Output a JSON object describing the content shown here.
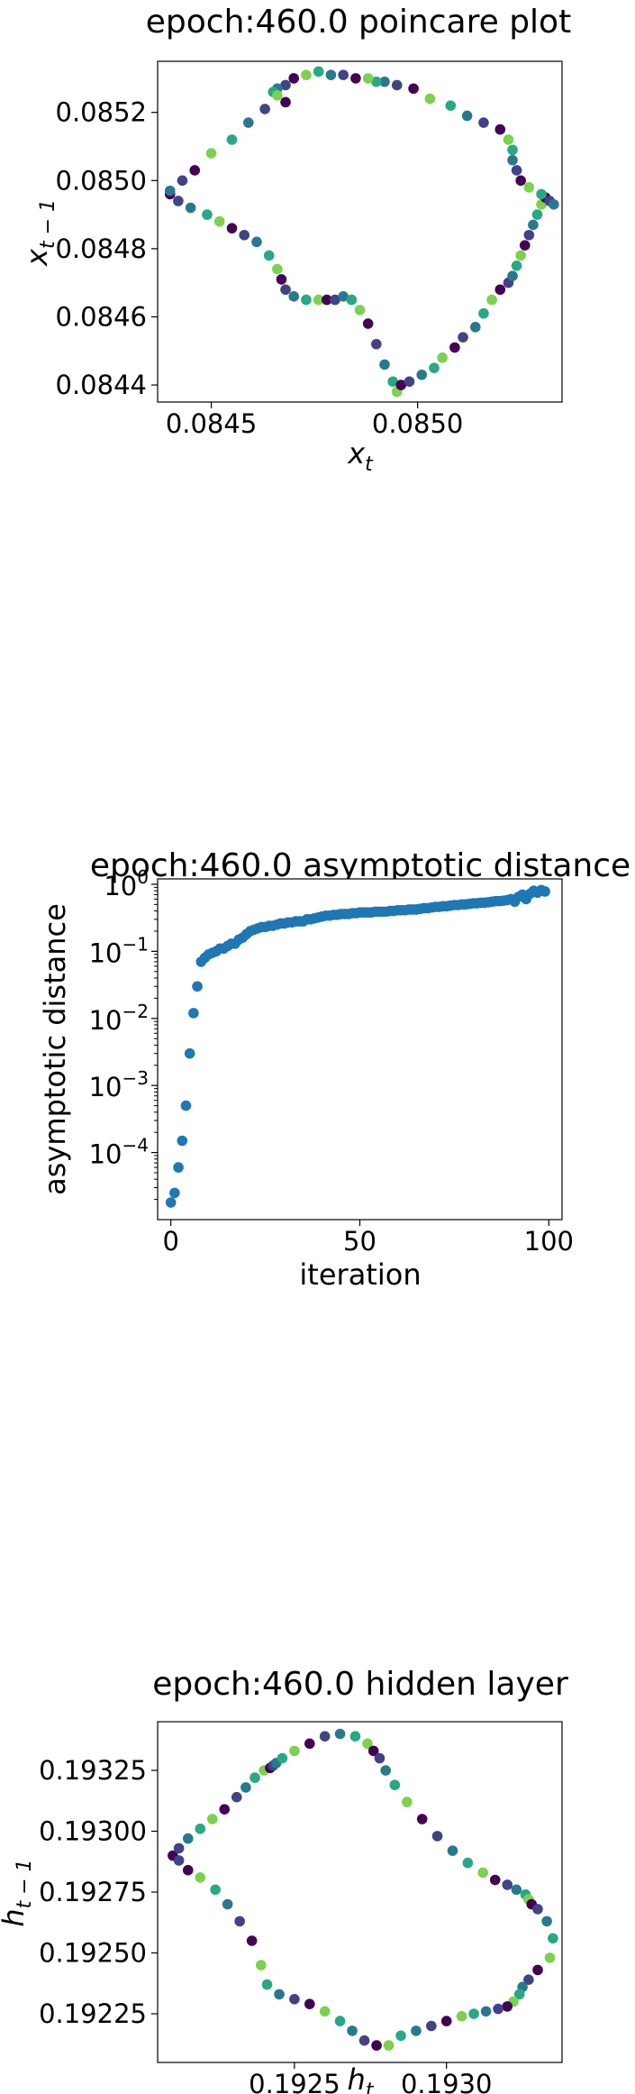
{
  "charts": [
    {
      "type": "scatter",
      "title": "epoch:460.0 poincare plot",
      "xlabel": "x",
      "xlabel_sub": "t",
      "ylabel": "x",
      "ylabel_sub": "t − 1",
      "xlim": [
        0.08437,
        0.08535
      ],
      "ylim": [
        0.08435,
        0.08535
      ],
      "xticks": [
        0.0845,
        0.085
      ],
      "xtick_labels": [
        "0.0845",
        "0.0850"
      ],
      "yticks": [
        0.0844,
        0.0846,
        0.0848,
        0.085,
        0.0852
      ],
      "ytick_labels": [
        "0.0844",
        "0.0846",
        "0.0848",
        "0.0850",
        "0.0852"
      ],
      "colormap": "viridis",
      "x": [
        0.0844,
        0.08442,
        0.08445,
        0.08449,
        0.08452,
        0.08455,
        0.08458,
        0.08461,
        0.08464,
        0.08466,
        0.08467,
        0.08468,
        0.0847,
        0.08473,
        0.08476,
        0.08478,
        0.0848,
        0.08482,
        0.08484,
        0.08486,
        0.08488,
        0.0849,
        0.08492,
        0.08494,
        0.08495,
        0.08496,
        0.08498,
        0.08501,
        0.08504,
        0.08506,
        0.08509,
        0.08511,
        0.08514,
        0.08516,
        0.08518,
        0.0852,
        0.08522,
        0.08523,
        0.08524,
        0.08525,
        0.08526,
        0.08527,
        0.08528,
        0.08529,
        0.0853,
        0.08531,
        0.08532,
        0.08533,
        0.0853,
        0.08527,
        0.08525,
        0.08524,
        0.08523,
        0.08523,
        0.08522,
        0.0852,
        0.08516,
        0.08512,
        0.08508,
        0.08503,
        0.08499,
        0.08495,
        0.08492,
        0.0849,
        0.08488,
        0.08485,
        0.08482,
        0.08479,
        0.08476,
        0.08473,
        0.0847,
        0.08468,
        0.08466,
        0.08465,
        0.08466,
        0.08468,
        0.08463,
        0.08459,
        0.08455,
        0.0845,
        0.08446,
        0.08443,
        0.0844
      ],
      "y": [
        0.08496,
        0.08494,
        0.08492,
        0.0849,
        0.08488,
        0.08486,
        0.08484,
        0.08482,
        0.08478,
        0.08474,
        0.08471,
        0.08468,
        0.08466,
        0.08465,
        0.08465,
        0.08465,
        0.08465,
        0.08466,
        0.08465,
        0.08462,
        0.08458,
        0.08452,
        0.08446,
        0.08441,
        0.08438,
        0.0844,
        0.08441,
        0.08443,
        0.08445,
        0.08448,
        0.08451,
        0.08454,
        0.08457,
        0.08461,
        0.08465,
        0.08468,
        0.0847,
        0.08472,
        0.08475,
        0.08478,
        0.08481,
        0.08484,
        0.08487,
        0.0849,
        0.08493,
        0.08495,
        0.08494,
        0.08493,
        0.08496,
        0.08498,
        0.085,
        0.08503,
        0.08506,
        0.08509,
        0.08512,
        0.08515,
        0.08517,
        0.08519,
        0.08522,
        0.08524,
        0.08527,
        0.08528,
        0.08529,
        0.08529,
        0.0853,
        0.0853,
        0.08531,
        0.08531,
        0.08532,
        0.08531,
        0.0853,
        0.08528,
        0.08527,
        0.08526,
        0.08525,
        0.08523,
        0.08521,
        0.08517,
        0.08512,
        0.08508,
        0.08503,
        0.085,
        0.08497
      ]
    },
    {
      "type": "scatter",
      "title": "epoch:460.0 asymptotic distance",
      "xlabel": "iteration",
      "ylabel": "asymptotic distance",
      "yscale": "log",
      "color": "#1f77b4",
      "xlim": [
        -3.5,
        103.5
      ],
      "ylim_log10": [
        -5.0,
        0.08
      ],
      "xticks": [
        0,
        50,
        100
      ],
      "xtick_labels": [
        "0",
        "50",
        "100"
      ],
      "yticks_log10": [
        0,
        -1,
        -2,
        -3,
        -4
      ],
      "ytick_base": "10",
      "ytick_exps": [
        "0",
        "−1",
        "−2",
        "−3",
        "−4"
      ],
      "x": [
        0,
        1,
        2,
        3,
        4,
        5,
        6,
        7,
        8,
        9,
        10,
        11,
        12,
        13,
        14,
        15,
        16,
        17,
        18,
        19,
        20,
        21,
        22,
        23,
        24,
        25,
        26,
        27,
        28,
        29,
        30,
        31,
        32,
        33,
        34,
        35,
        36,
        37,
        38,
        39,
        40,
        41,
        42,
        43,
        44,
        45,
        46,
        47,
        48,
        49,
        50,
        51,
        52,
        53,
        54,
        55,
        56,
        57,
        58,
        59,
        60,
        61,
        62,
        63,
        64,
        65,
        66,
        67,
        68,
        69,
        70,
        71,
        72,
        73,
        74,
        75,
        76,
        77,
        78,
        79,
        80,
        81,
        82,
        83,
        84,
        85,
        86,
        87,
        88,
        89,
        90,
        91,
        92,
        93,
        94,
        95,
        96,
        97,
        98,
        99
      ],
      "y": [
        1.8e-05,
        2.5e-05,
        6e-05,
        0.00015,
        0.0005,
        0.003,
        0.012,
        0.03,
        0.07,
        0.08,
        0.09,
        0.095,
        0.1,
        0.11,
        0.11,
        0.12,
        0.13,
        0.13,
        0.15,
        0.16,
        0.18,
        0.2,
        0.21,
        0.22,
        0.23,
        0.23,
        0.24,
        0.24,
        0.25,
        0.26,
        0.26,
        0.27,
        0.27,
        0.28,
        0.28,
        0.28,
        0.3,
        0.3,
        0.31,
        0.32,
        0.33,
        0.34,
        0.34,
        0.35,
        0.35,
        0.36,
        0.36,
        0.36,
        0.37,
        0.37,
        0.38,
        0.38,
        0.38,
        0.38,
        0.39,
        0.39,
        0.39,
        0.39,
        0.4,
        0.4,
        0.41,
        0.41,
        0.41,
        0.42,
        0.42,
        0.42,
        0.43,
        0.44,
        0.44,
        0.45,
        0.46,
        0.46,
        0.47,
        0.47,
        0.48,
        0.49,
        0.49,
        0.5,
        0.5,
        0.51,
        0.52,
        0.52,
        0.53,
        0.53,
        0.54,
        0.55,
        0.56,
        0.56,
        0.57,
        0.58,
        0.6,
        0.55,
        0.65,
        0.7,
        0.6,
        0.72,
        0.8,
        0.75,
        0.82,
        0.78
      ]
    },
    {
      "type": "scatter",
      "title": "epoch:460.0 hidden layer",
      "xlabel": "h",
      "xlabel_sub": "t",
      "ylabel": "h",
      "ylabel_sub": "t − 1",
      "xlim": [
        0.19205,
        0.19338
      ],
      "ylim": [
        0.19205,
        0.19345
      ],
      "xticks": [
        0.1925,
        0.193
      ],
      "xtick_labels": [
        "0.1925",
        "0.1930"
      ],
      "yticks": [
        0.19225,
        0.1925,
        0.19275,
        0.193,
        0.19325
      ],
      "ytick_labels": [
        "0.19225",
        "0.19250",
        "0.19275",
        "0.19300",
        "0.19325"
      ],
      "colormap": "viridis",
      "x": [
        0.1921,
        0.19212,
        0.19215,
        0.19219,
        0.19223,
        0.19227,
        0.19231,
        0.19234,
        0.19237,
        0.1924,
        0.19242,
        0.19243,
        0.19244,
        0.19246,
        0.1925,
        0.19255,
        0.1926,
        0.19265,
        0.1927,
        0.19274,
        0.19276,
        0.19278,
        0.1928,
        0.19283,
        0.19287,
        0.19292,
        0.19297,
        0.19302,
        0.19307,
        0.19312,
        0.19316,
        0.1932,
        0.19323,
        0.19326,
        0.19327,
        0.19328,
        0.1933,
        0.19333,
        0.19335,
        0.19334,
        0.1933,
        0.19327,
        0.19325,
        0.19324,
        0.19322,
        0.1932,
        0.19317,
        0.19313,
        0.19309,
        0.19305,
        0.193,
        0.19295,
        0.1929,
        0.19285,
        0.19281,
        0.19277,
        0.19273,
        0.19269,
        0.19265,
        0.1926,
        0.19255,
        0.1925,
        0.19245,
        0.19241,
        0.19239,
        0.19236,
        0.19232,
        0.19228,
        0.19224,
        0.19219,
        0.19215,
        0.19212
      ],
      "y": [
        0.1929,
        0.19293,
        0.19297,
        0.19301,
        0.19305,
        0.19309,
        0.19314,
        0.19318,
        0.19322,
        0.19325,
        0.19326,
        0.19327,
        0.19328,
        0.1933,
        0.19333,
        0.19336,
        0.19339,
        0.1934,
        0.19339,
        0.19336,
        0.19333,
        0.1933,
        0.19325,
        0.19319,
        0.19312,
        0.19305,
        0.19298,
        0.19292,
        0.19287,
        0.19283,
        0.1928,
        0.19278,
        0.19276,
        0.19274,
        0.19272,
        0.1927,
        0.19268,
        0.19263,
        0.19256,
        0.19248,
        0.19243,
        0.19239,
        0.19236,
        0.19233,
        0.1923,
        0.19228,
        0.19227,
        0.19226,
        0.19225,
        0.19224,
        0.19222,
        0.1922,
        0.19218,
        0.19216,
        0.19212,
        0.19212,
        0.19214,
        0.19218,
        0.19222,
        0.19226,
        0.19229,
        0.19231,
        0.19233,
        0.19237,
        0.19245,
        0.19255,
        0.19263,
        0.1927,
        0.19276,
        0.19281,
        0.19284,
        0.19288
      ]
    }
  ]
}
